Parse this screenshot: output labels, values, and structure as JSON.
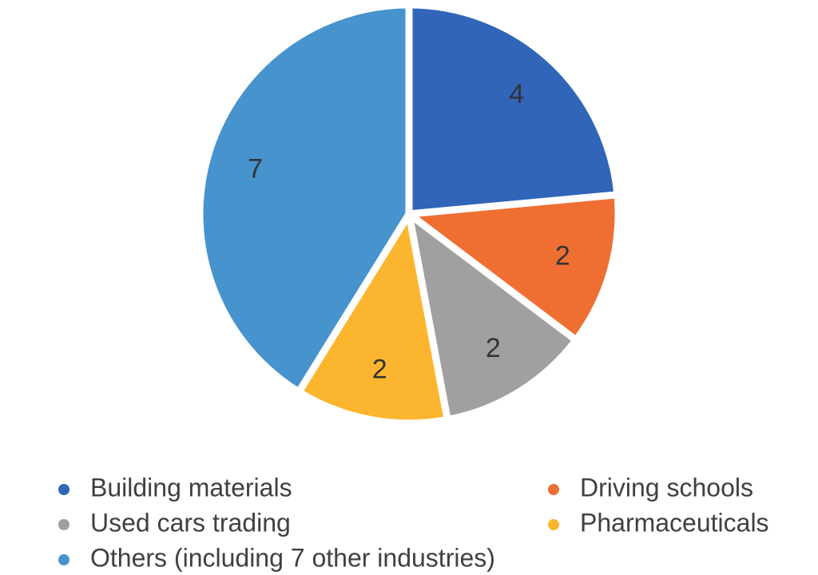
{
  "chart_data": {
    "type": "pie",
    "categories": [
      "Building materials",
      "Driving schools",
      "Used cars trading",
      "Pharmaceuticals",
      "Others (including 7 other industries)"
    ],
    "values": [
      4,
      2,
      2,
      2,
      7
    ],
    "colors": [
      "#3065b8",
      "#ef6f33",
      "#a0a0a0",
      "#fcb52f",
      "#4793cd"
    ],
    "legend": "bottom"
  }
}
